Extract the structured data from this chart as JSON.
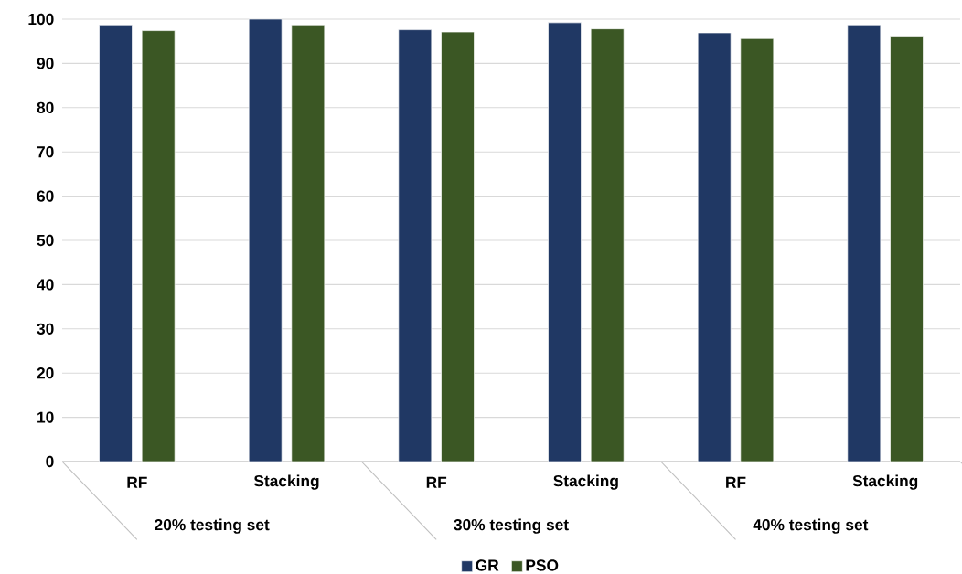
{
  "chart_data": {
    "type": "bar",
    "categories": [
      "RF",
      "Stacking",
      "RF",
      "Stacking",
      "RF",
      "Stacking"
    ],
    "series": [
      {
        "name": "GR",
        "color": "#203864",
        "values": [
          98.7,
          100,
          97.6,
          99.2,
          96.9,
          98.7
        ]
      },
      {
        "name": "PSO",
        "color": "#3b5724",
        "values": [
          97.4,
          98.7,
          97.1,
          97.8,
          95.6,
          96.2
        ]
      }
    ],
    "annotations": [
      "20% testing set",
      "30% testing set",
      "40% testing set"
    ],
    "ylim": [
      0,
      100
    ],
    "yticks": [
      0,
      10,
      20,
      30,
      40,
      50,
      60,
      70,
      80,
      90,
      100
    ],
    "grid": "y",
    "legend": "bottom"
  }
}
